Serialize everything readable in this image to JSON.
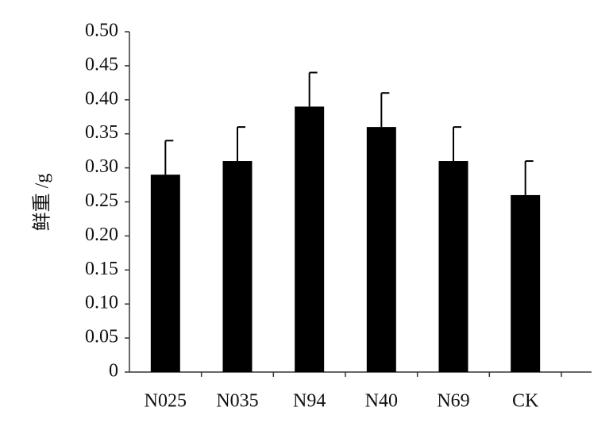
{
  "chart_data": {
    "type": "bar",
    "y_label": "鲜重 /g",
    "categories": [
      "N025",
      "N035",
      "N94",
      "N40",
      "N69",
      "CK"
    ],
    "values": [
      0.29,
      0.31,
      0.39,
      0.36,
      0.31,
      0.26
    ],
    "errors": [
      0.05,
      0.05,
      0.05,
      0.05,
      0.05,
      0.05
    ],
    "color": "#000000",
    "ylim": [
      0,
      0.5
    ],
    "yticks": [
      0,
      0.05,
      {
        "value": 0.1,
        "label": "0.10"
      },
      0.15,
      {
        "value": 0.2,
        "label": "0.20"
      },
      0.25,
      {
        "value": 0.3,
        "label": "0.30"
      },
      0.35,
      {
        "value": 0.4,
        "label": "0.40"
      },
      0.45,
      {
        "value": 0.5,
        "label": "0.50"
      }
    ]
  }
}
